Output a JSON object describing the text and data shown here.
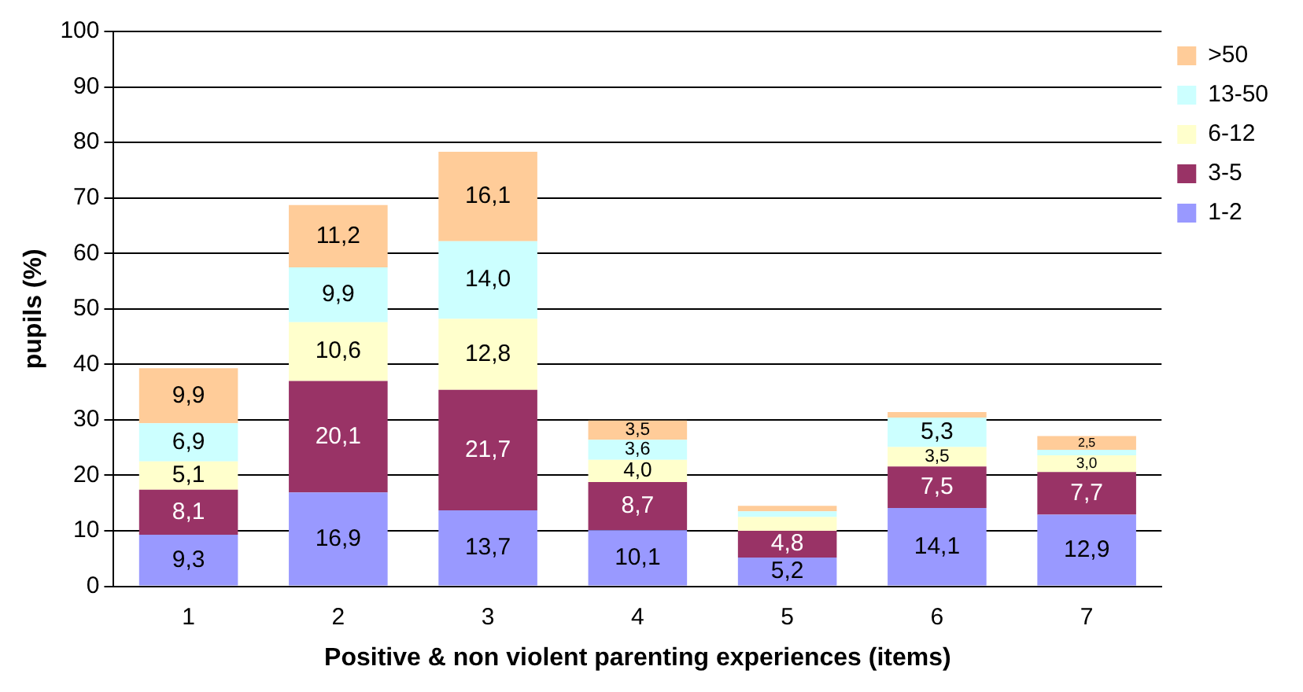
{
  "chart_data": {
    "type": "bar",
    "stacked": true,
    "xlabel": "Positive & non violent parenting experiences (items)",
    "ylabel": "pupils (%)",
    "categories": [
      "1",
      "2",
      "3",
      "4",
      "5",
      "6",
      "7"
    ],
    "ylim": [
      0,
      100
    ],
    "yticks": [
      0,
      10,
      20,
      30,
      40,
      50,
      60,
      70,
      80,
      90,
      100
    ],
    "grid": "y",
    "legend": "right",
    "series": [
      {
        "name": "1-2",
        "color": "#9999ff",
        "values": [
          9.3,
          16.9,
          13.7,
          10.1,
          5.2,
          14.1,
          12.9
        ],
        "value_labels": [
          "9,3",
          "16,9",
          "13,7",
          "10,1",
          "5,2",
          "14,1",
          "12,9"
        ]
      },
      {
        "name": "3-5",
        "color": "#993366",
        "values": [
          8.1,
          20.1,
          21.7,
          8.7,
          4.8,
          7.5,
          7.7
        ],
        "value_labels": [
          "8,1",
          "20,1",
          "21,7",
          "8,7",
          "4,8",
          "7,5",
          "7,7"
        ]
      },
      {
        "name": "6-12",
        "color": "#ffffcc",
        "values": [
          5.1,
          10.6,
          12.8,
          4.0,
          2.5,
          3.5,
          3.0
        ],
        "value_labels": [
          "5,1",
          "10,6",
          "12,8",
          "4,0",
          null,
          "3,5",
          "3,0"
        ]
      },
      {
        "name": "13-50",
        "color": "#ccffff",
        "values": [
          6.9,
          9.9,
          14.0,
          3.6,
          1.0,
          5.3,
          1.0
        ],
        "value_labels": [
          "6,9",
          "9,9",
          "14,0",
          "3,6",
          null,
          "5,3",
          null
        ]
      },
      {
        "name": ">50",
        "color": "#ffcc99",
        "values": [
          9.9,
          11.2,
          16.1,
          3.5,
          1.0,
          1.0,
          2.5
        ],
        "value_labels": [
          "9,9",
          "11,2",
          "16,1",
          "3,5",
          null,
          null,
          "2,5"
        ]
      }
    ]
  }
}
